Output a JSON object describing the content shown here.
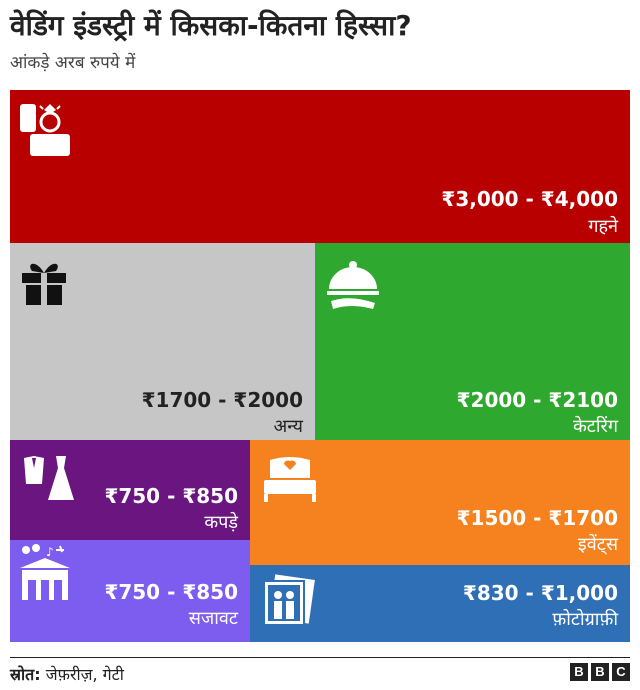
{
  "title": "वेडिंग इंडस्ट्री में किसका-कितना हिस्सा?",
  "subtitle": "आंकड़े अरब रुपये में",
  "source_label": "स्रोत:",
  "source_text": "जेफ़रीज़, गेटी",
  "brand": [
    "B",
    "B",
    "C"
  ],
  "chart_data": {
    "type": "treemap",
    "unit": "आंकड़े अरब रुपये में",
    "items": [
      {
        "label": "गहने",
        "range_text": "₹3,000 - ₹4,000",
        "min": 3000,
        "max": 4000,
        "color": "#b80000",
        "icon": "ring-box-icon"
      },
      {
        "label": "अन्य",
        "range_text": "₹1700 - ₹2000",
        "min": 1700,
        "max": 2000,
        "color": "#c6c6c6",
        "icon": "gift-icon"
      },
      {
        "label": "केटरिंग",
        "range_text": "₹2000 - ₹2100",
        "min": 2000,
        "max": 2100,
        "color": "#2fa82f",
        "icon": "cloche-icon"
      },
      {
        "label": "कपड़े",
        "range_text": "₹750 - ₹850",
        "min": 750,
        "max": 850,
        "color": "#6b1580",
        "icon": "suit-dress-icon"
      },
      {
        "label": "इवेंट्स",
        "range_text": "₹1500 - ₹1700",
        "min": 1500,
        "max": 1700,
        "color": "#f5821f",
        "icon": "bed-icon"
      },
      {
        "label": "सजावट",
        "range_text": "₹750 - ₹850",
        "min": 750,
        "max": 850,
        "color": "#7d5cf0",
        "icon": "decorated-house-icon"
      },
      {
        "label": "फ़ोटोग्राफ़ी",
        "range_text": "₹830 - ₹1,000",
        "min": 830,
        "max": 1000,
        "color": "#2f6fb5",
        "icon": "photo-frames-icon"
      }
    ]
  }
}
